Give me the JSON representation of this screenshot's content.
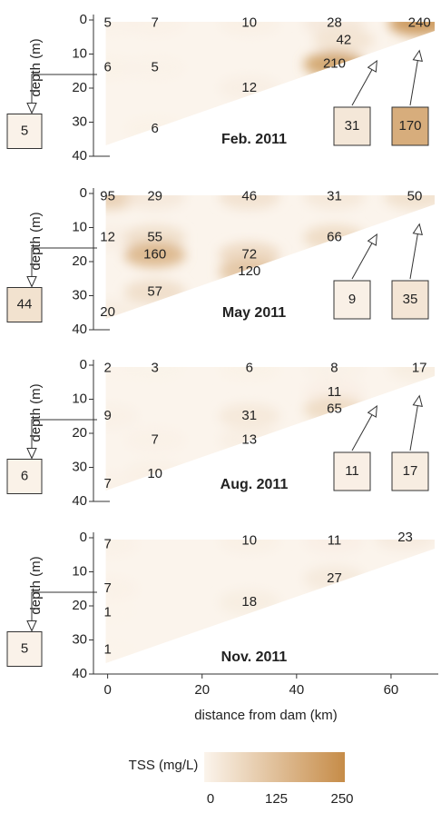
{
  "chart_data": [
    {
      "type": "contour",
      "title": "Feb. 2011",
      "ylabel": "depth (m)",
      "xlim": [
        -3,
        70
      ],
      "ylim": [
        0,
        40
      ],
      "yticks": [
        0,
        10,
        20,
        30,
        40
      ],
      "x": [
        0,
        10,
        30,
        48,
        66,
        50,
        0,
        10,
        48,
        30,
        10
      ],
      "y": [
        1,
        1,
        1,
        1,
        1,
        6,
        14,
        14,
        13,
        20,
        32
      ],
      "values": [
        5,
        7,
        10,
        28,
        240,
        42,
        6,
        5,
        210,
        12,
        6
      ],
      "inflows": [
        5,
        31,
        170
      ]
    },
    {
      "type": "contour",
      "title": "May 2011",
      "ylabel": "depth (m)",
      "xlim": [
        -3,
        70
      ],
      "ylim": [
        0,
        40
      ],
      "yticks": [
        0,
        10,
        20,
        30,
        40
      ],
      "x": [
        0,
        10,
        30,
        48,
        65,
        0,
        10,
        48,
        10,
        30,
        30,
        10,
        0
      ],
      "y": [
        1,
        1,
        1,
        1,
        1,
        13,
        13,
        13,
        18,
        18,
        23,
        29,
        35
      ],
      "values": [
        95,
        29,
        46,
        31,
        50,
        12,
        55,
        66,
        160,
        72,
        120,
        57,
        20
      ],
      "inflows": [
        44,
        9,
        35
      ]
    },
    {
      "type": "contour",
      "title": "Aug. 2011",
      "ylabel": "depth (m)",
      "xlim": [
        -3,
        70
      ],
      "ylim": [
        0,
        40
      ],
      "yticks": [
        0,
        10,
        20,
        30,
        40
      ],
      "x": [
        0,
        10,
        30,
        48,
        66,
        48,
        48,
        0,
        30,
        10,
        30,
        10,
        0
      ],
      "y": [
        1,
        1,
        1,
        1,
        1,
        8,
        13,
        15,
        15,
        22,
        22,
        32,
        35
      ],
      "values": [
        2,
        3,
        6,
        8,
        17,
        11,
        65,
        9,
        31,
        7,
        13,
        10,
        7
      ],
      "inflows": [
        6,
        11,
        17
      ]
    },
    {
      "type": "contour",
      "title": "Nov. 2011",
      "ylabel": "depth (m)",
      "xlim": [
        -3,
        70
      ],
      "ylim": [
        0,
        40
      ],
      "yticks": [
        0,
        10,
        20,
        30,
        40
      ],
      "x": [
        0,
        30,
        48,
        63,
        48,
        0,
        30,
        0,
        0
      ],
      "y": [
        2,
        1,
        1,
        0,
        12,
        15,
        19,
        22,
        33
      ],
      "values": [
        7,
        10,
        11,
        23,
        27,
        7,
        18,
        1,
        1
      ],
      "inflows": [
        5
      ],
      "xlabel": "distance from dam (km)",
      "xticks": [
        0,
        20,
        40,
        60
      ]
    }
  ],
  "colorbar": {
    "label": "TSS (mg/L)",
    "lim": [
      0,
      250
    ],
    "ticks": [
      0,
      125,
      250
    ],
    "colors": [
      "#fbf4ec",
      "#c68c48"
    ]
  }
}
